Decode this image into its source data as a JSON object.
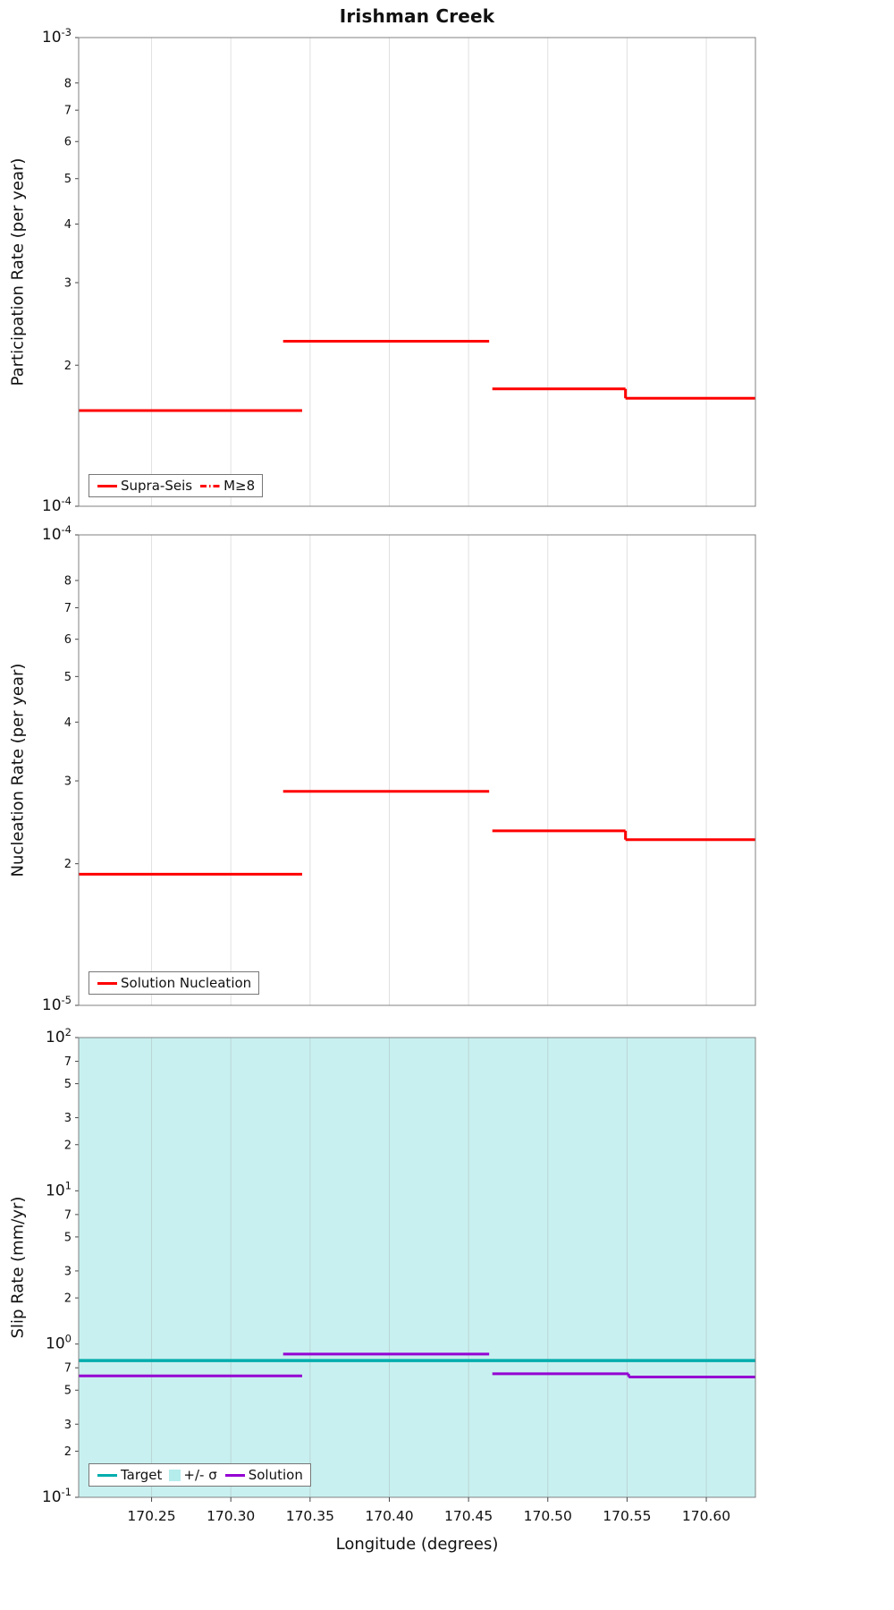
{
  "title": "Irishman Creek",
  "xlabel": "Longitude (degrees)",
  "xlim": [
    170.204,
    170.631
  ],
  "x_ticks": [
    {
      "v": 170.25,
      "label": "170.25"
    },
    {
      "v": 170.3,
      "label": "170.30"
    },
    {
      "v": 170.35,
      "label": "170.35"
    },
    {
      "v": 170.4,
      "label": "170.40"
    },
    {
      "v": 170.45,
      "label": "170.45"
    },
    {
      "v": 170.5,
      "label": "170.50"
    },
    {
      "v": 170.55,
      "label": "170.55"
    },
    {
      "v": 170.6,
      "label": "170.60"
    }
  ],
  "colors": {
    "red": "#ff0000",
    "teal": "#00adad",
    "purple": "#9400d3",
    "sigma_fill": "#c9f0f0",
    "grid": "#999999",
    "border": "#808080"
  },
  "chart_data": [
    {
      "id": "participation",
      "type": "line",
      "ylabel": "Participation Rate (per year)",
      "yscale": "log",
      "ylim": [
        0.0001,
        0.001
      ],
      "grid": true,
      "legend_position": "bottom-left",
      "y_ticks": [
        {
          "v": 0.001,
          "base": "10",
          "sup": "-3"
        },
        {
          "v": 0.0008,
          "label": "8"
        },
        {
          "v": 0.0007,
          "label": "7"
        },
        {
          "v": 0.0006,
          "label": "6"
        },
        {
          "v": 0.0005,
          "label": "5"
        },
        {
          "v": 0.0004,
          "label": "4"
        },
        {
          "v": 0.0003,
          "label": "3"
        },
        {
          "v": 0.0002,
          "label": "2"
        },
        {
          "v": 0.0001,
          "base": "10",
          "sup": "-4"
        }
      ],
      "legend": [
        {
          "label": "Supra-Seis",
          "color": "#ff0000",
          "sample": "solid"
        },
        {
          "label": "M≥8",
          "color": "#ff0000",
          "sample": "dashdot"
        }
      ],
      "series": [
        {
          "name": "Supra-Seis",
          "color": "#ff0000",
          "width": 3,
          "steps": [
            [
              170.204,
              170.345,
              0.00016
            ],
            [
              170.333,
              170.463,
              0.000225
            ],
            [
              170.465,
              170.549,
              0.000178
            ],
            [
              170.549,
              170.631,
              0.00017
            ]
          ]
        }
      ]
    },
    {
      "id": "nucleation",
      "type": "line",
      "ylabel": "Nucleation Rate (per year)",
      "yscale": "log",
      "ylim": [
        1e-05,
        0.0001
      ],
      "grid": true,
      "legend_position": "bottom-left",
      "y_ticks": [
        {
          "v": 0.0001,
          "base": "10",
          "sup": "-4"
        },
        {
          "v": 8e-05,
          "label": "8"
        },
        {
          "v": 7e-05,
          "label": "7"
        },
        {
          "v": 6e-05,
          "label": "6"
        },
        {
          "v": 5e-05,
          "label": "5"
        },
        {
          "v": 4e-05,
          "label": "4"
        },
        {
          "v": 3e-05,
          "label": "3"
        },
        {
          "v": 2e-05,
          "label": "2"
        },
        {
          "v": 1e-05,
          "base": "10",
          "sup": "-5"
        }
      ],
      "legend": [
        {
          "label": "Solution Nucleation",
          "color": "#ff0000",
          "sample": "solid"
        }
      ],
      "series": [
        {
          "name": "Solution Nucleation",
          "color": "#ff0000",
          "width": 3,
          "steps": [
            [
              170.204,
              170.345,
              1.9e-05
            ],
            [
              170.333,
              170.463,
              2.85e-05
            ],
            [
              170.465,
              170.549,
              2.35e-05
            ],
            [
              170.549,
              170.631,
              2.25e-05
            ]
          ]
        }
      ]
    },
    {
      "id": "slip-rate",
      "type": "line",
      "ylabel": "Slip Rate (mm/yr)",
      "yscale": "log",
      "ylim": [
        0.1,
        100
      ],
      "grid": true,
      "legend_position": "bottom-left",
      "sigma_band": {
        "label": "+/- σ",
        "fill": "#c9f0f0",
        "covers_full_panel": true
      },
      "y_ticks": [
        {
          "v": 100,
          "base": "10",
          "sup": "2"
        },
        {
          "v": 70,
          "label": "7"
        },
        {
          "v": 50,
          "label": "5"
        },
        {
          "v": 30,
          "label": "3"
        },
        {
          "v": 20,
          "label": "2"
        },
        {
          "v": 10,
          "base": "10",
          "sup": "1"
        },
        {
          "v": 7,
          "label": "7"
        },
        {
          "v": 5,
          "label": "5"
        },
        {
          "v": 3,
          "label": "3"
        },
        {
          "v": 2,
          "label": "2"
        },
        {
          "v": 1,
          "base": "10",
          "sup": "0"
        },
        {
          "v": 0.7,
          "label": "7"
        },
        {
          "v": 0.5,
          "label": "5"
        },
        {
          "v": 0.3,
          "label": "3"
        },
        {
          "v": 0.2,
          "label": "2"
        },
        {
          "v": 0.1,
          "base": "10",
          "sup": "-1"
        }
      ],
      "legend": [
        {
          "label": "Target",
          "color": "#00adad",
          "sample": "solid"
        },
        {
          "label": "+/- σ",
          "color": "#b5ecec",
          "sample": "patch"
        },
        {
          "label": "Solution",
          "color": "#9400d3",
          "sample": "solid"
        }
      ],
      "series": [
        {
          "name": "Target",
          "color": "#00adad",
          "width": 3.5,
          "steps": [
            [
              170.204,
              170.631,
              0.78
            ]
          ]
        },
        {
          "name": "Solution",
          "color": "#9400d3",
          "width": 3,
          "steps": [
            [
              170.204,
              170.345,
              0.62
            ],
            [
              170.333,
              170.463,
              0.86
            ],
            [
              170.465,
              170.551,
              0.64
            ],
            [
              170.551,
              170.631,
              0.61
            ]
          ]
        }
      ]
    }
  ]
}
